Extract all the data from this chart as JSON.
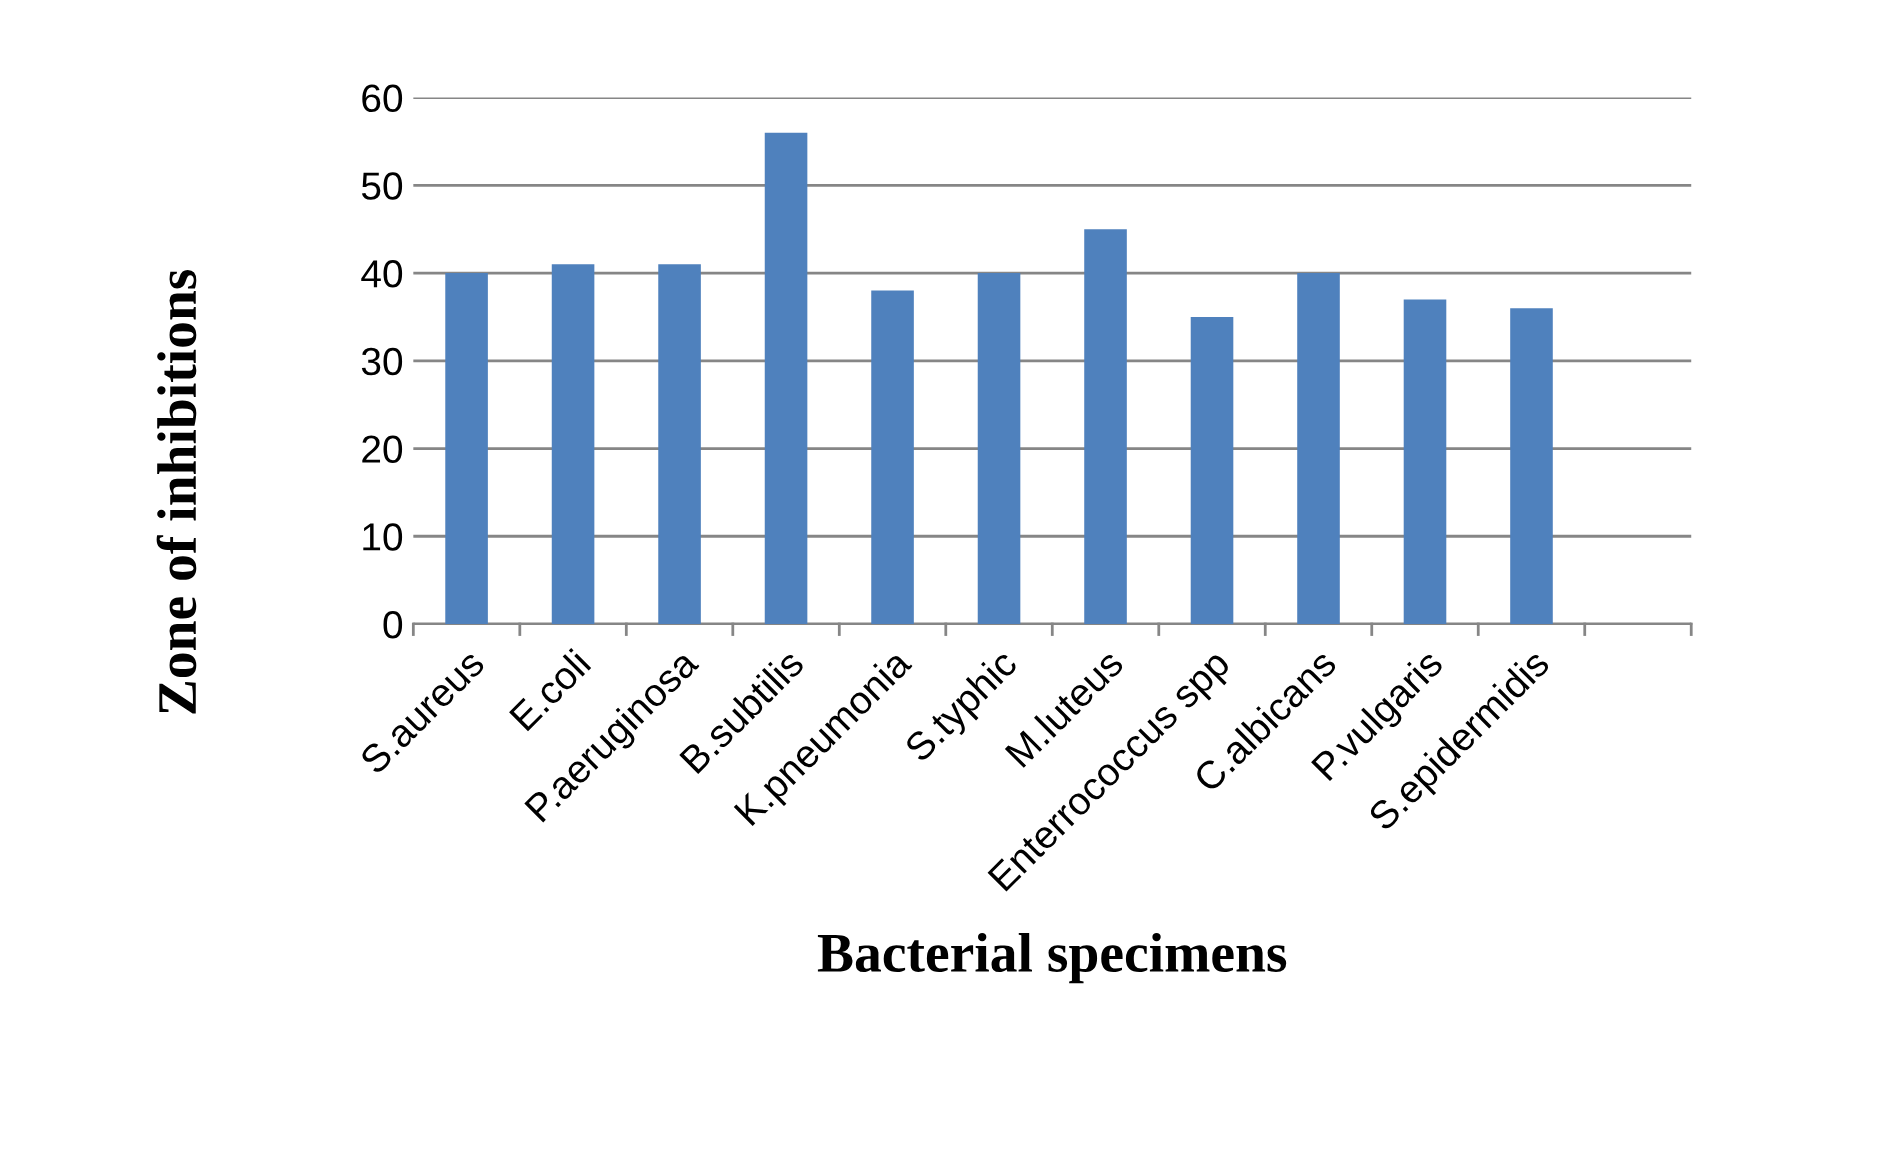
{
  "chart_data": {
    "type": "bar",
    "xlabel": "Bacterial specimens",
    "ylabel": "Zone of inhibitions",
    "categories": [
      "S.aureus",
      "E.coli",
      "P.aeruginosa",
      "B.subtilis",
      "K.pneumonia",
      "S.typhic",
      "M.luteus",
      "Enterrococcus spp",
      "C.albicans",
      "P.vulgaris",
      "S.epidermidis",
      null
    ],
    "values": [
      40,
      41,
      41,
      56,
      38,
      40,
      45,
      35,
      40,
      37,
      36,
      null
    ],
    "color": "#4f81bd",
    "ylim": [
      0,
      60
    ],
    "yticks": [
      0,
      10,
      20,
      30,
      40,
      50,
      60
    ],
    "grid": "y"
  }
}
